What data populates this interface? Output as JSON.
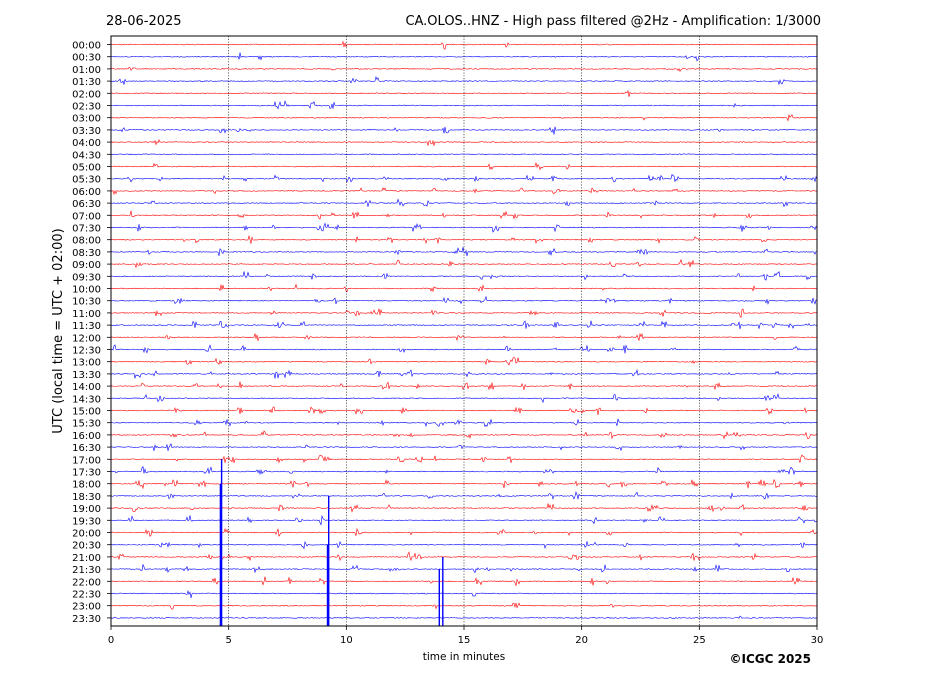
{
  "header": {
    "date": "28-06-2025",
    "title": "CA.OLOS..HNZ - High pass filtered @2Hz - Amplification: 1/3000"
  },
  "footer": {
    "copyright": "©ICGC 2025"
  },
  "chart_data": {
    "type": "line",
    "title": "CA.OLOS..HNZ - High pass filtered @2Hz - Amplification: 1/3000",
    "xlabel": "time in minutes",
    "ylabel": "UTC (local time = UTC + 02:00)",
    "xlim": [
      0,
      30
    ],
    "xticks": [
      0,
      5,
      10,
      15,
      20,
      25,
      30
    ],
    "vertical_gridlines_at": [
      5,
      10,
      15,
      20,
      25
    ],
    "rows": [
      "00:00",
      "00:30",
      "01:00",
      "01:30",
      "02:00",
      "02:30",
      "03:00",
      "03:30",
      "04:00",
      "04:30",
      "05:00",
      "05:30",
      "06:00",
      "06:30",
      "07:00",
      "07:30",
      "08:00",
      "08:30",
      "09:00",
      "09:30",
      "10:00",
      "10:30",
      "11:00",
      "11:30",
      "12:00",
      "12:30",
      "13:00",
      "13:30",
      "14:00",
      "14:30",
      "15:00",
      "15:30",
      "16:00",
      "16:30",
      "17:00",
      "17:30",
      "18:00",
      "18:30",
      "19:00",
      "19:30",
      "20:00",
      "20:30",
      "21:00",
      "21:30",
      "22:00",
      "22:30",
      "23:00",
      "23:30"
    ],
    "series_colors": [
      "#ff0000",
      "#0000ff"
    ],
    "large_spikes": [
      {
        "row": "17:00",
        "minute": 4.7
      },
      {
        "row": "18:00",
        "minute": 4.65
      },
      {
        "row": "18:30",
        "minute": 9.25
      },
      {
        "row": "20:30",
        "minute": 9.2
      },
      {
        "row": "21:00",
        "minute": 14.1
      },
      {
        "row": "21:30",
        "minute": 13.95
      }
    ],
    "seed": 20250628
  }
}
